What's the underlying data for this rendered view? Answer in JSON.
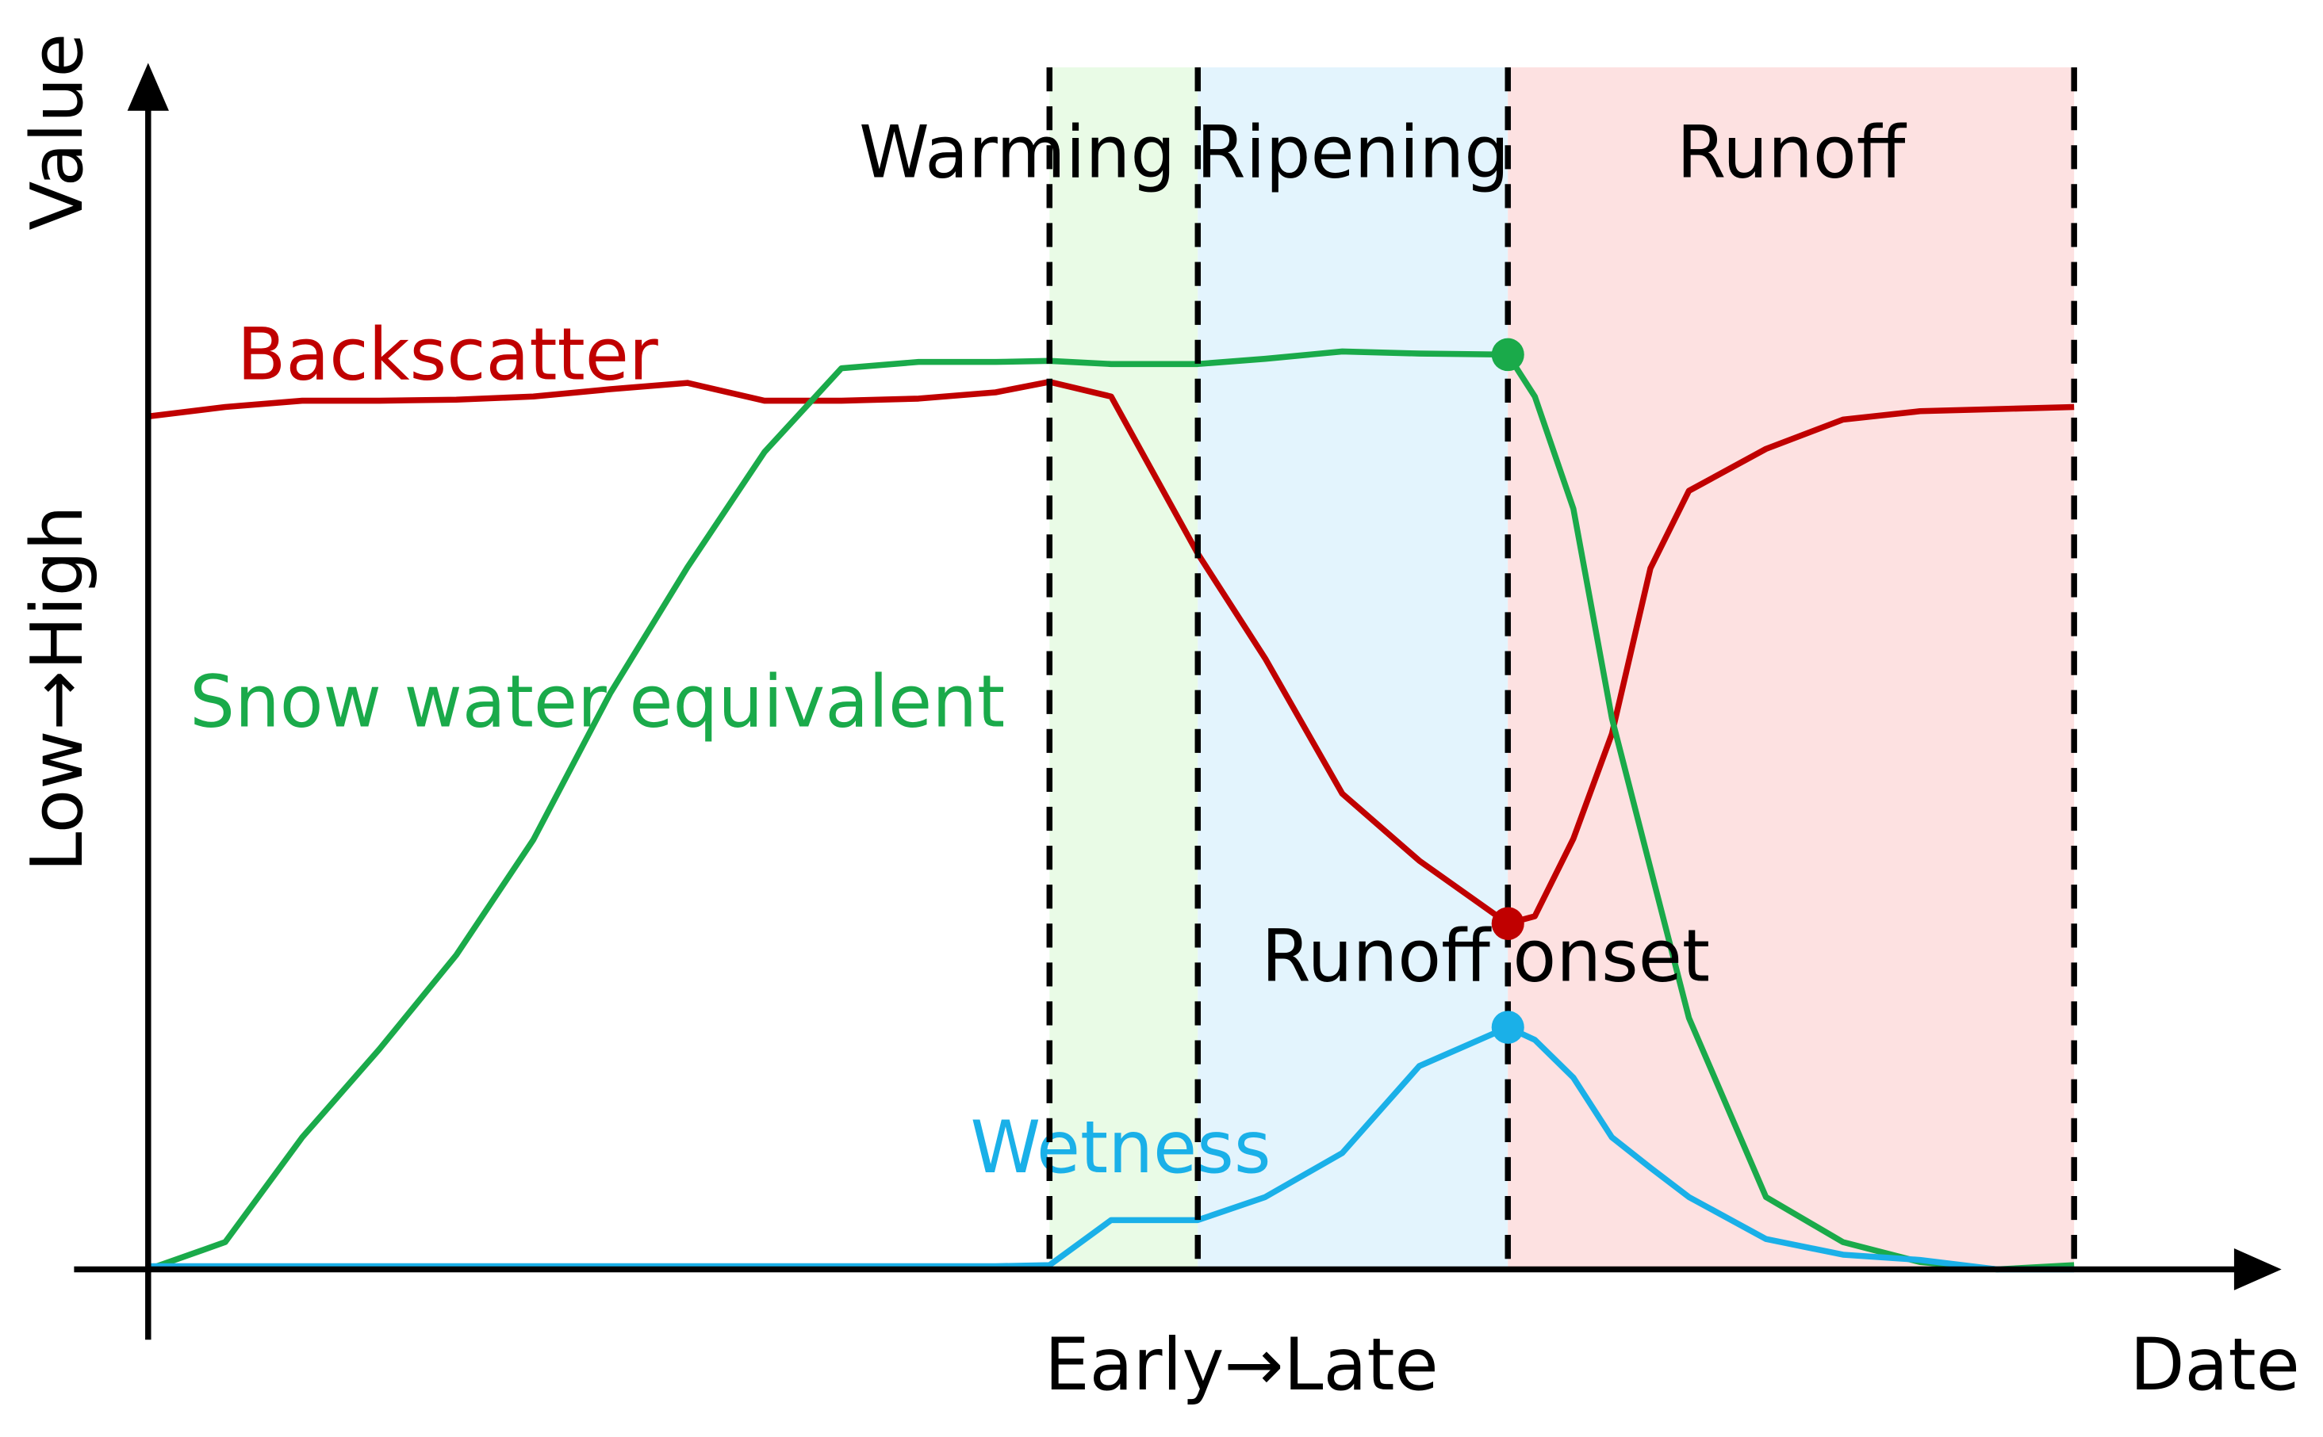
{
  "chart_data": {
    "type": "line",
    "x_label": "Early→Late",
    "x_axis_name": "Date",
    "y_label": "Low→High",
    "y_axis_name": "Value",
    "xlim": [
      0,
      100
    ],
    "ylim": [
      0,
      100
    ],
    "x": [
      0,
      4,
      8,
      12,
      16,
      20,
      24,
      28,
      32,
      36,
      40,
      44,
      46.8,
      50,
      54.5,
      58,
      62,
      66,
      70.6,
      72,
      74,
      76,
      78,
      80,
      84,
      88,
      92,
      96,
      100
    ],
    "series": [
      {
        "name": "Backscatter",
        "color": "#c00000",
        "values": [
          81.4,
          82.3,
          82.9,
          82.9,
          83,
          83.3,
          84,
          84.6,
          82.9,
          82.9,
          83.1,
          83.7,
          84.7,
          83.3,
          68.3,
          58.3,
          45.4,
          39,
          33,
          33.7,
          41.1,
          51.1,
          66.9,
          74.3,
          78.3,
          81.1,
          81.9,
          82.1,
          82.3
        ]
      },
      {
        "name": "Snow water equivalent",
        "color": "#1aaa4a",
        "values": [
          0,
          2.6,
          12.6,
          21,
          30,
          41,
          55,
          67,
          78,
          86,
          86.6,
          86.6,
          86.7,
          86.4,
          86.4,
          86.9,
          87.6,
          87.4,
          87.3,
          83.3,
          72.6,
          52.6,
          38.3,
          24,
          6.9,
          2.6,
          0.7,
          0,
          0.4
        ]
      },
      {
        "name": "Wetness",
        "color": "#1ab0e8",
        "values": [
          0.3,
          0.3,
          0.3,
          0.3,
          0.3,
          0.3,
          0.3,
          0.3,
          0.3,
          0.3,
          0.3,
          0.3,
          0.4,
          4.7,
          4.7,
          6.9,
          11.1,
          19.4,
          23.1,
          21.9,
          18.3,
          12.6,
          9.7,
          6.9,
          2.9,
          1.4,
          0.9,
          0,
          0
        ]
      }
    ],
    "phases": [
      {
        "name": "Warming",
        "start": 46.8,
        "end": 54.5,
        "color": "#e9fbe6"
      },
      {
        "name": "Ripening",
        "start": 54.5,
        "end": 70.6,
        "color": "#e3f4fd"
      },
      {
        "name": "Runoff",
        "start": 70.6,
        "end": 100,
        "color": "#fde1e1"
      }
    ],
    "annotation": {
      "text": "Runoff onset",
      "x": 70.6
    }
  }
}
